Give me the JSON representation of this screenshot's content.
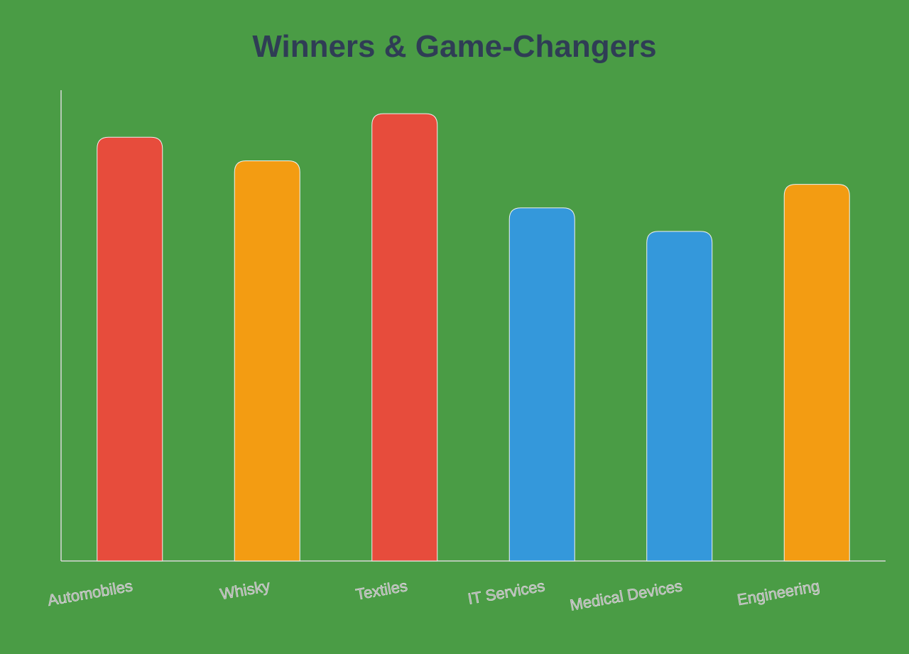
{
  "chart_data": {
    "type": "bar",
    "title": "Winners & Game-Changers",
    "categories": [
      "Automobiles",
      "Whisky",
      "Textiles",
      "IT Services",
      "Medical Devices",
      "Engineering"
    ],
    "values": [
      9,
      8.5,
      9.5,
      7.5,
      7,
      8
    ],
    "colors": [
      "#e74c3c",
      "#f39c12",
      "#e74c3c",
      "#3498db",
      "#3498db",
      "#f39c12"
    ],
    "ylim": [
      0,
      10
    ]
  }
}
